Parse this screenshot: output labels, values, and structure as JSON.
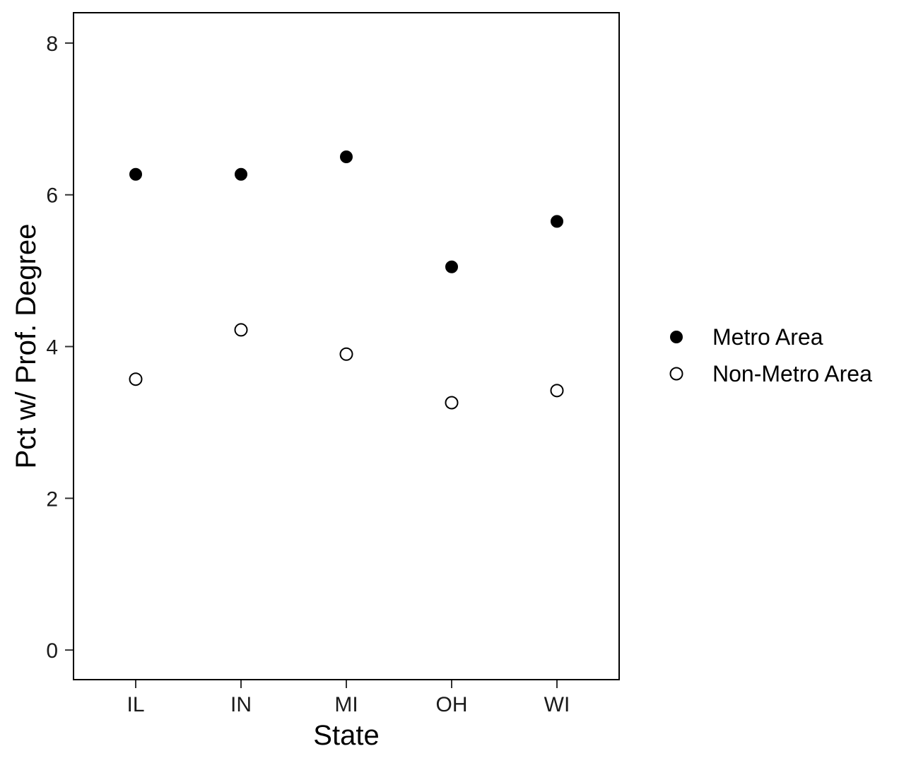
{
  "chart_data": {
    "type": "scatter",
    "categories": [
      "IL",
      "IN",
      "MI",
      "OH",
      "WI"
    ],
    "series": [
      {
        "name": "Metro Area",
        "values": [
          6.27,
          6.27,
          6.5,
          5.05,
          5.65
        ],
        "marker": "filled-circle",
        "color": "#000000"
      },
      {
        "name": "Non-Metro Area",
        "values": [
          3.57,
          4.22,
          3.9,
          3.26,
          3.42
        ],
        "marker": "open-circle",
        "color": "#000000"
      }
    ],
    "title": "",
    "xlabel": "State",
    "ylabel": "Pct w/ Prof. Degree",
    "ylim": [
      -0.39,
      8.4
    ],
    "yticks": [
      0,
      2,
      4,
      6,
      8
    ],
    "grid": false,
    "legend_position": "right"
  }
}
